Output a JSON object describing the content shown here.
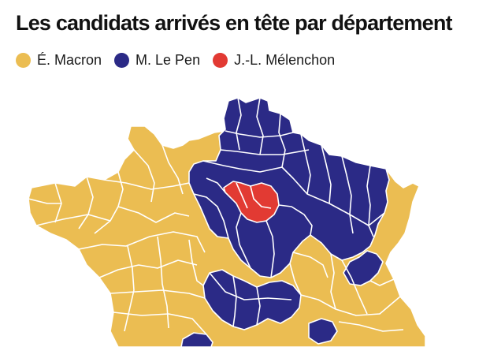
{
  "title": "Les candidats arrivés en tête par département",
  "legend": [
    {
      "label": "É. Macron",
      "color": "#ebbd52"
    },
    {
      "label": "M. Le Pen",
      "color": "#2b2a86"
    },
    {
      "label": "J.-L. Mélenchon",
      "color": "#e23a33"
    }
  ]
}
